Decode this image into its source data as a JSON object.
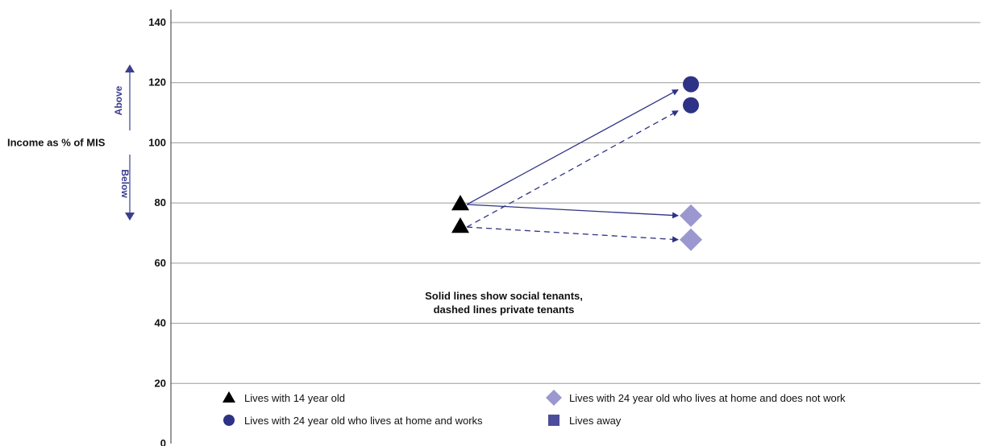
{
  "chart_data": {
    "type": "scatter",
    "title": "",
    "ylabel": "Income as % of MIS",
    "ylim": [
      0,
      140
    ],
    "yticks": [
      0,
      20,
      40,
      60,
      80,
      100,
      120,
      140
    ],
    "grid": true,
    "direction_labels": {
      "above": "Above",
      "below": "Below"
    },
    "annotation": [
      "Solid lines show social tenants,",
      "dashed lines private tenants"
    ],
    "series": [
      {
        "name": "Lives with 14 year old",
        "marker": "triangle",
        "color": "#000000",
        "points": [
          {
            "x": 0,
            "y": 79.5,
            "tenure": "social"
          },
          {
            "x": 0,
            "y": 72,
            "tenure": "private"
          }
        ]
      },
      {
        "name": "Lives with 24 year old who lives at home and works",
        "marker": "circle",
        "color": "#2e3286",
        "points": [
          {
            "x": 1,
            "y": 119.5,
            "tenure": "social"
          },
          {
            "x": 1,
            "y": 112.5,
            "tenure": "private"
          }
        ]
      },
      {
        "name": "Lives with 24 year old who lives at home and does not work",
        "marker": "diamond",
        "color": "#9b98cf",
        "points": [
          {
            "x": 1,
            "y": 75.8,
            "tenure": "social"
          },
          {
            "x": 1,
            "y": 67.8,
            "tenure": "private"
          }
        ]
      },
      {
        "name": "Lives away",
        "marker": "square",
        "color": "#4c4c9c",
        "points": []
      }
    ],
    "transitions": [
      {
        "from_y": 79.5,
        "to_y": 119.5,
        "style": "solid"
      },
      {
        "from_y": 72,
        "to_y": 112.5,
        "style": "dashed"
      },
      {
        "from_y": 79.5,
        "to_y": 75.8,
        "style": "solid"
      },
      {
        "from_y": 72,
        "to_y": 67.8,
        "style": "dashed"
      }
    ],
    "legend_placement": "bottom"
  }
}
